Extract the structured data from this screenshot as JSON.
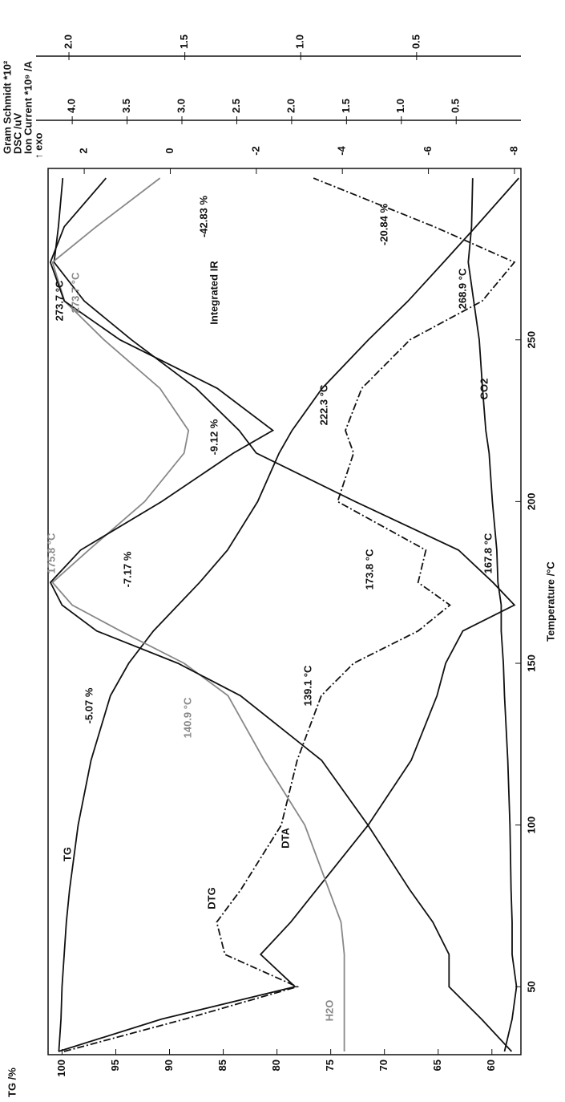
{
  "chart_data": {
    "type": "line",
    "xlabel": "Temperature /°C",
    "ylabel": "TG /%",
    "axis_header": [
      "Gram Schmidt *10²",
      "DSC /uV",
      "Ion Current *10⁹ /A",
      "↑ exo"
    ],
    "x": [
      30,
      40,
      50,
      60,
      70,
      80,
      100,
      120,
      140,
      150,
      160,
      168,
      175,
      185,
      200,
      215,
      222,
      235,
      250,
      262,
      274,
      285,
      300
    ],
    "xlim": [
      29,
      303
    ],
    "xticks": [
      50,
      100,
      150,
      200,
      250
    ],
    "ylim": [
      57.3,
      101.3
    ],
    "yticks": [
      60,
      65,
      70,
      75,
      80,
      85,
      90,
      95,
      100
    ],
    "y2lim": [
      -8.15,
      2.84
    ],
    "y2ticks": [
      -8,
      -6,
      -4,
      -2,
      0,
      2
    ],
    "y3lim": [
      -0.09,
      4.22
    ],
    "y3ticks": [
      0.5,
      {
        "value": 1,
        "label": "1.0"
      },
      1.5,
      {
        "value": 2,
        "label": "2.0"
      },
      2.5,
      {
        "value": 3,
        "label": "3.0"
      },
      3.5,
      {
        "value": 4,
        "label": "4.0"
      }
    ],
    "y4lim": [
      0.05,
      2.09
    ],
    "y4ticks": [
      0.5,
      {
        "value": 1,
        "label": "1.0"
      },
      1.5,
      {
        "value": 2,
        "label": "2.0"
      }
    ],
    "series": [
      {
        "name": "TG",
        "color": "#111111",
        "axis": "y",
        "dash": "none",
        "values": [
          100.3,
          100.1,
          100,
          99.8,
          99.6,
          99.3,
          98.5,
          97.3,
          95.5,
          93.8,
          91.5,
          89.2,
          87.2,
          84.6,
          81.8,
          79.8,
          78.6,
          75.8,
          71.5,
          67.8,
          64.5,
          61.5,
          57.5
        ]
      },
      {
        "name": "DTA",
        "color": "#111111",
        "axis": "y2",
        "dash": "none",
        "values": [
          2.6,
          0.2,
          -2.9,
          -2.1,
          -2.8,
          -3.4,
          -4.6,
          -5.6,
          -6.2,
          -6.4,
          -6.8,
          -8.0,
          -7.5,
          -6.7,
          -4.3,
          -2.0,
          -1.6,
          -0.6,
          0.9,
          2.0,
          2.7,
          2.6,
          2.5
        ]
      },
      {
        "name": "DTG",
        "color": "#111111",
        "axis": "y2",
        "dash": "9,3,2,3",
        "values": [
          2.47,
          -0.34,
          -2.95,
          -1.27,
          -1.08,
          -1.64,
          -2.58,
          -2.95,
          -3.51,
          -4.26,
          -5.76,
          -6.5,
          -5.76,
          -5.94,
          -3.89,
          -4.26,
          -4.07,
          -4.45,
          -5.57,
          -7.25,
          -8.0,
          -6.13,
          -3.33
        ]
      },
      {
        "name": "H2O",
        "color": "#888888",
        "axis": "y3",
        "dash": "none",
        "values": [
          1.52,
          1.52,
          1.52,
          1.52,
          1.55,
          1.66,
          1.88,
          2.25,
          2.58,
          2.98,
          3.56,
          4.0,
          4.18,
          3.85,
          3.34,
          2.98,
          2.94,
          3.2,
          3.71,
          4.07,
          4.18,
          3.78,
          3.2
        ]
      },
      {
        "name": "CO2",
        "color": "#111111",
        "axis": "y3",
        "dash": "none",
        "values": [
          0.06,
          -0.01,
          -0.05,
          -0.01,
          -0.01,
          0.0,
          0.01,
          0.03,
          0.06,
          0.07,
          0.09,
          0.09,
          0.12,
          0.13,
          0.17,
          0.2,
          0.23,
          0.26,
          0.29,
          0.34,
          0.39,
          0.36,
          0.35
        ]
      },
      {
        "name": "Integrated IR",
        "color": "#111111",
        "axis": "y4",
        "dash": "none",
        "values": [
          0.09,
          0.22,
          0.36,
          0.36,
          0.43,
          0.53,
          0.71,
          0.91,
          1.26,
          1.53,
          1.88,
          2.03,
          2.08,
          1.95,
          1.6,
          1.29,
          1.12,
          1.36,
          1.78,
          2.02,
          2.08,
          2.02,
          1.84
        ]
      }
    ],
    "annotations": [
      {
        "text": "273.7 °C",
        "color": "#111111"
      },
      {
        "text": "273.7 °C",
        "color": "#888888"
      },
      {
        "text": "-42.83 %",
        "color": "#111111"
      },
      {
        "text": "-20.84 %",
        "color": "#111111"
      },
      {
        "text": "268.9 °C",
        "color": "#111111"
      },
      {
        "text": "222.3 °C",
        "color": "#111111"
      },
      {
        "text": "-9.12 %",
        "color": "#111111"
      },
      {
        "text": "175.8 °C",
        "color": "#888888"
      },
      {
        "text": "167.8 °C",
        "color": "#111111"
      },
      {
        "text": "-7.17 %",
        "color": "#111111"
      },
      {
        "text": "173.8 °C",
        "color": "#111111"
      },
      {
        "text": "139.1 °C",
        "color": "#111111"
      },
      {
        "text": "-5.07 %",
        "color": "#111111"
      },
      {
        "text": "140.9 °C",
        "color": "#888888"
      }
    ]
  }
}
